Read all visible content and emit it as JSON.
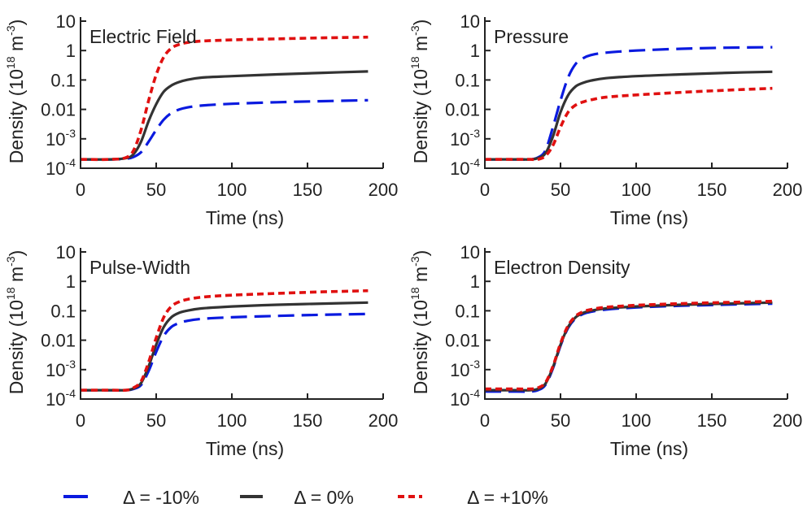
{
  "chart_data": [
    {
      "type": "line",
      "title": "Electric Field",
      "xlabel": "Time (ns)",
      "ylabel": "Density (10",
      "ylabel_exp1": "18",
      "ylabel_mid": " m",
      "ylabel_exp2": "-3",
      "ylabel_close": ")",
      "xlim": [
        0,
        200
      ],
      "ylim": [
        0.0001,
        10
      ],
      "yscale": "log",
      "grid": false,
      "xticks": [
        "0",
        "50",
        "100",
        "150",
        "200"
      ],
      "yticks": [
        {
          "base": "10",
          "exp": "-4",
          "value": 0.0001
        },
        {
          "base": "10",
          "exp": "-3",
          "value": 0.001
        },
        {
          "base": "0.01",
          "exp": "",
          "value": 0.01
        },
        {
          "base": "0.1",
          "exp": "",
          "value": 0.1
        },
        {
          "base": "1",
          "exp": "",
          "value": 1
        },
        {
          "base": "10",
          "exp": "",
          "value": 10
        }
      ],
      "series": [
        {
          "name": "Δ = -10%",
          "x": [
            0,
            20,
            30,
            35,
            40,
            45,
            50,
            55,
            60,
            65,
            70,
            80,
            100,
            130,
            160,
            190
          ],
          "values": [
            0.0002,
            0.0002,
            0.00021,
            0.00024,
            0.00035,
            0.0008,
            0.002,
            0.0045,
            0.0075,
            0.0098,
            0.0115,
            0.0135,
            0.0155,
            0.0175,
            0.019,
            0.0205
          ]
        },
        {
          "name": "Δ = 0%",
          "x": [
            0,
            20,
            30,
            35,
            40,
            45,
            50,
            55,
            60,
            65,
            70,
            80,
            100,
            130,
            160,
            190
          ],
          "values": [
            0.0002,
            0.0002,
            0.00022,
            0.0003,
            0.0008,
            0.004,
            0.015,
            0.04,
            0.065,
            0.085,
            0.1,
            0.12,
            0.135,
            0.155,
            0.175,
            0.195
          ]
        },
        {
          "name": "Δ = +10%",
          "x": [
            0,
            20,
            30,
            35,
            40,
            45,
            50,
            55,
            60,
            65,
            70,
            80,
            100,
            130,
            160,
            190
          ],
          "values": [
            0.0002,
            0.0002,
            0.00023,
            0.0004,
            0.002,
            0.02,
            0.15,
            0.6,
            1.2,
            1.6,
            1.85,
            2.1,
            2.3,
            2.5,
            2.7,
            2.85
          ]
        }
      ]
    },
    {
      "type": "line",
      "title": "Pressure",
      "xlabel": "Time (ns)",
      "ylabel": "Density (10",
      "ylabel_exp1": "18",
      "ylabel_mid": " m",
      "ylabel_exp2": "-3",
      "ylabel_close": ")",
      "xlim": [
        0,
        200
      ],
      "ylim": [
        0.0001,
        10
      ],
      "yscale": "log",
      "grid": false,
      "xticks": [
        "0",
        "50",
        "100",
        "150",
        "200"
      ],
      "yticks": [
        {
          "base": "10",
          "exp": "-4",
          "value": 0.0001
        },
        {
          "base": "10",
          "exp": "-3",
          "value": 0.001
        },
        {
          "base": "0.01",
          "exp": "",
          "value": 0.01
        },
        {
          "base": "0.1",
          "exp": "",
          "value": 0.1
        },
        {
          "base": "1",
          "exp": "",
          "value": 1
        },
        {
          "base": "10",
          "exp": "",
          "value": 10
        }
      ],
      "series": [
        {
          "name": "Δ = -10%",
          "x": [
            0,
            20,
            30,
            35,
            40,
            45,
            50,
            55,
            60,
            65,
            70,
            80,
            100,
            130,
            160,
            190
          ],
          "values": [
            0.0002,
            0.0002,
            0.0002,
            0.00023,
            0.0004,
            0.0025,
            0.02,
            0.12,
            0.35,
            0.55,
            0.7,
            0.85,
            1.0,
            1.15,
            1.25,
            1.3
          ]
        },
        {
          "name": "Δ = 0%",
          "x": [
            0,
            20,
            30,
            35,
            40,
            45,
            50,
            55,
            60,
            65,
            70,
            80,
            100,
            130,
            160,
            190
          ],
          "values": [
            0.0002,
            0.0002,
            0.0002,
            0.00022,
            0.00032,
            0.0012,
            0.008,
            0.03,
            0.06,
            0.08,
            0.095,
            0.115,
            0.135,
            0.155,
            0.175,
            0.19
          ]
        },
        {
          "name": "Δ = +10%",
          "x": [
            0,
            20,
            30,
            35,
            40,
            45,
            50,
            55,
            60,
            65,
            70,
            80,
            100,
            130,
            160,
            190
          ],
          "values": [
            0.0002,
            0.0002,
            0.0002,
            0.0002,
            0.00026,
            0.0006,
            0.0025,
            0.008,
            0.014,
            0.018,
            0.021,
            0.026,
            0.031,
            0.038,
            0.045,
            0.052
          ]
        }
      ]
    },
    {
      "type": "line",
      "title": "Pulse-Width",
      "xlabel": "Time (ns)",
      "ylabel": "Density (10",
      "ylabel_exp1": "18",
      "ylabel_mid": " m",
      "ylabel_exp2": "-3",
      "ylabel_close": ")",
      "xlim": [
        0,
        200
      ],
      "ylim": [
        0.0001,
        10
      ],
      "yscale": "log",
      "grid": false,
      "xticks": [
        "0",
        "50",
        "100",
        "150",
        "200"
      ],
      "yticks": [
        {
          "base": "10",
          "exp": "-4",
          "value": 0.0001
        },
        {
          "base": "10",
          "exp": "-3",
          "value": 0.001
        },
        {
          "base": "0.01",
          "exp": "",
          "value": 0.01
        },
        {
          "base": "0.1",
          "exp": "",
          "value": 0.1
        },
        {
          "base": "1",
          "exp": "",
          "value": 1
        },
        {
          "base": "10",
          "exp": "",
          "value": 10
        }
      ],
      "series": [
        {
          "name": "Δ = -10%",
          "x": [
            0,
            20,
            30,
            35,
            40,
            45,
            50,
            55,
            60,
            65,
            70,
            80,
            100,
            130,
            160,
            190
          ],
          "values": [
            0.0002,
            0.0002,
            0.0002,
            0.00022,
            0.0003,
            0.0009,
            0.004,
            0.014,
            0.028,
            0.038,
            0.045,
            0.053,
            0.06,
            0.067,
            0.073,
            0.078
          ]
        },
        {
          "name": "Δ = 0%",
          "x": [
            0,
            20,
            30,
            35,
            40,
            45,
            50,
            55,
            60,
            65,
            70,
            80,
            100,
            130,
            160,
            190
          ],
          "values": [
            0.0002,
            0.0002,
            0.0002,
            0.00023,
            0.00035,
            0.0013,
            0.007,
            0.028,
            0.06,
            0.085,
            0.1,
            0.12,
            0.14,
            0.16,
            0.175,
            0.19
          ]
        },
        {
          "name": "Δ = +10%",
          "x": [
            0,
            20,
            30,
            35,
            40,
            45,
            50,
            55,
            60,
            65,
            70,
            80,
            100,
            130,
            160,
            190
          ],
          "values": [
            0.0002,
            0.0002,
            0.0002,
            0.00024,
            0.0004,
            0.0018,
            0.012,
            0.06,
            0.14,
            0.2,
            0.24,
            0.29,
            0.34,
            0.39,
            0.44,
            0.48
          ]
        }
      ]
    },
    {
      "type": "line",
      "title": "Electron Density",
      "xlabel": "Time (ns)",
      "ylabel": "Density (10",
      "ylabel_exp1": "18",
      "ylabel_mid": " m",
      "ylabel_exp2": "-3",
      "ylabel_close": ")",
      "xlim": [
        0,
        200
      ],
      "ylim": [
        0.0001,
        10
      ],
      "yscale": "log",
      "grid": false,
      "xticks": [
        "0",
        "50",
        "100",
        "150",
        "200"
      ],
      "yticks": [
        {
          "base": "10",
          "exp": "-4",
          "value": 0.0001
        },
        {
          "base": "10",
          "exp": "-3",
          "value": 0.001
        },
        {
          "base": "0.01",
          "exp": "",
          "value": 0.01
        },
        {
          "base": "0.1",
          "exp": "",
          "value": 0.1
        },
        {
          "base": "1",
          "exp": "",
          "value": 1
        },
        {
          "base": "10",
          "exp": "",
          "value": 10
        }
      ],
      "series": [
        {
          "name": "Δ = -10%",
          "x": [
            0,
            20,
            30,
            35,
            40,
            45,
            50,
            55,
            60,
            65,
            70,
            80,
            100,
            130,
            160,
            190
          ],
          "values": [
            0.00018,
            0.00018,
            0.00018,
            0.0002,
            0.0003,
            0.0011,
            0.0065,
            0.026,
            0.055,
            0.078,
            0.092,
            0.11,
            0.13,
            0.148,
            0.162,
            0.175
          ]
        },
        {
          "name": "Δ = 0%",
          "x": [
            0,
            20,
            30,
            35,
            40,
            45,
            50,
            55,
            60,
            65,
            70,
            80,
            100,
            130,
            160,
            190
          ],
          "values": [
            0.0002,
            0.0002,
            0.0002,
            0.00022,
            0.00033,
            0.0012,
            0.007,
            0.028,
            0.06,
            0.085,
            0.1,
            0.12,
            0.14,
            0.16,
            0.175,
            0.19
          ]
        },
        {
          "name": "Δ = +10%",
          "x": [
            0,
            20,
            30,
            35,
            40,
            45,
            50,
            55,
            60,
            65,
            70,
            80,
            100,
            130,
            160,
            190
          ],
          "values": [
            0.00022,
            0.00022,
            0.00022,
            0.00024,
            0.00036,
            0.0013,
            0.0078,
            0.031,
            0.066,
            0.093,
            0.11,
            0.132,
            0.154,
            0.176,
            0.193,
            0.21
          ]
        }
      ]
    }
  ],
  "legend": {
    "placement": "bottom",
    "entries": [
      {
        "label": "Δ = -10%",
        "color": "#0a1adf",
        "dash": "long-dash"
      },
      {
        "label": "Δ = 0%",
        "color": "#333333",
        "dash": "solid"
      },
      {
        "label": "Δ = +10%",
        "color": "#e01010",
        "dash": "short-dash"
      }
    ]
  },
  "colors": {
    "minus10": "#0a1adf",
    "zero": "#333333",
    "plus10": "#e01010",
    "axis": "#222222"
  }
}
